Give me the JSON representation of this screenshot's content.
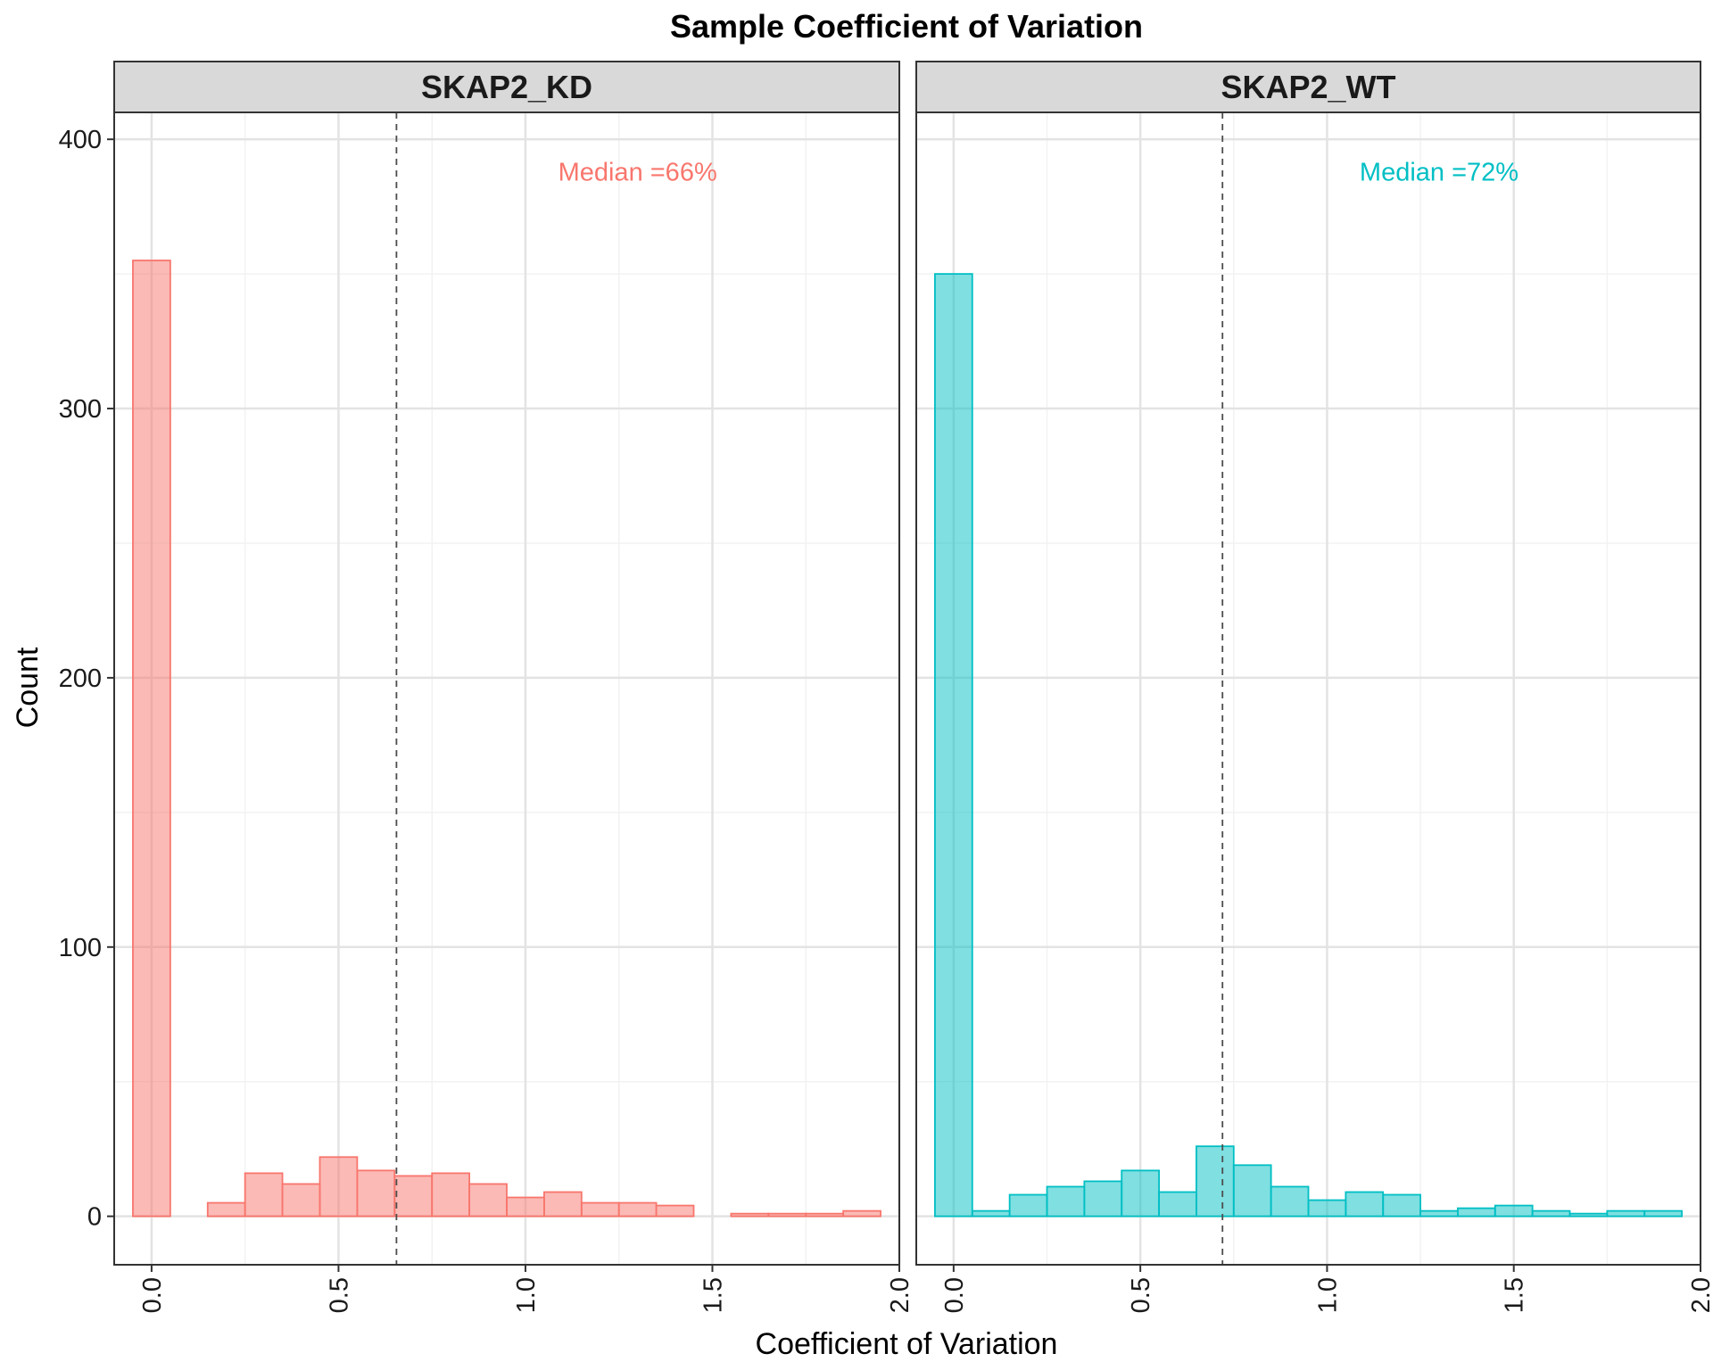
{
  "chart_data": {
    "type": "bar",
    "title": "Sample Coefficient of Variation",
    "xlabel": "Coefficient of Variation",
    "ylabel": "Count",
    "xlim": [
      -0.1,
      2.0
    ],
    "ylim": [
      -18,
      410
    ],
    "x_ticks": [
      "0.0",
      "0.5",
      "1.0",
      "1.5",
      "2.0"
    ],
    "y_ticks": [
      "0",
      "100",
      "200",
      "300",
      "400"
    ],
    "bin_width": 0.1,
    "bin_centers": [
      0.0,
      0.1,
      0.2,
      0.3,
      0.4,
      0.5,
      0.6,
      0.7,
      0.8,
      0.9,
      1.0,
      1.1,
      1.2,
      1.3,
      1.4,
      1.5,
      1.6,
      1.7,
      1.8,
      1.9
    ],
    "grid": true,
    "facets": [
      {
        "name": "SKAP2_KD",
        "color": "#F8766D",
        "fill": "#F8766D",
        "median": 0.655,
        "median_label": "Median =66%",
        "values": [
          355,
          0,
          5,
          16,
          12,
          22,
          17,
          15,
          16,
          12,
          7,
          9,
          5,
          5,
          4,
          0,
          1,
          1,
          1,
          2
        ]
      },
      {
        "name": "SKAP2_WT",
        "color": "#00BFC4",
        "fill": "#00BFC4",
        "median": 0.72,
        "median_label": "Median =72%",
        "values": [
          350,
          2,
          8,
          11,
          13,
          17,
          9,
          26,
          19,
          11,
          6,
          9,
          8,
          2,
          3,
          4,
          2,
          1,
          2,
          2
        ]
      }
    ]
  }
}
